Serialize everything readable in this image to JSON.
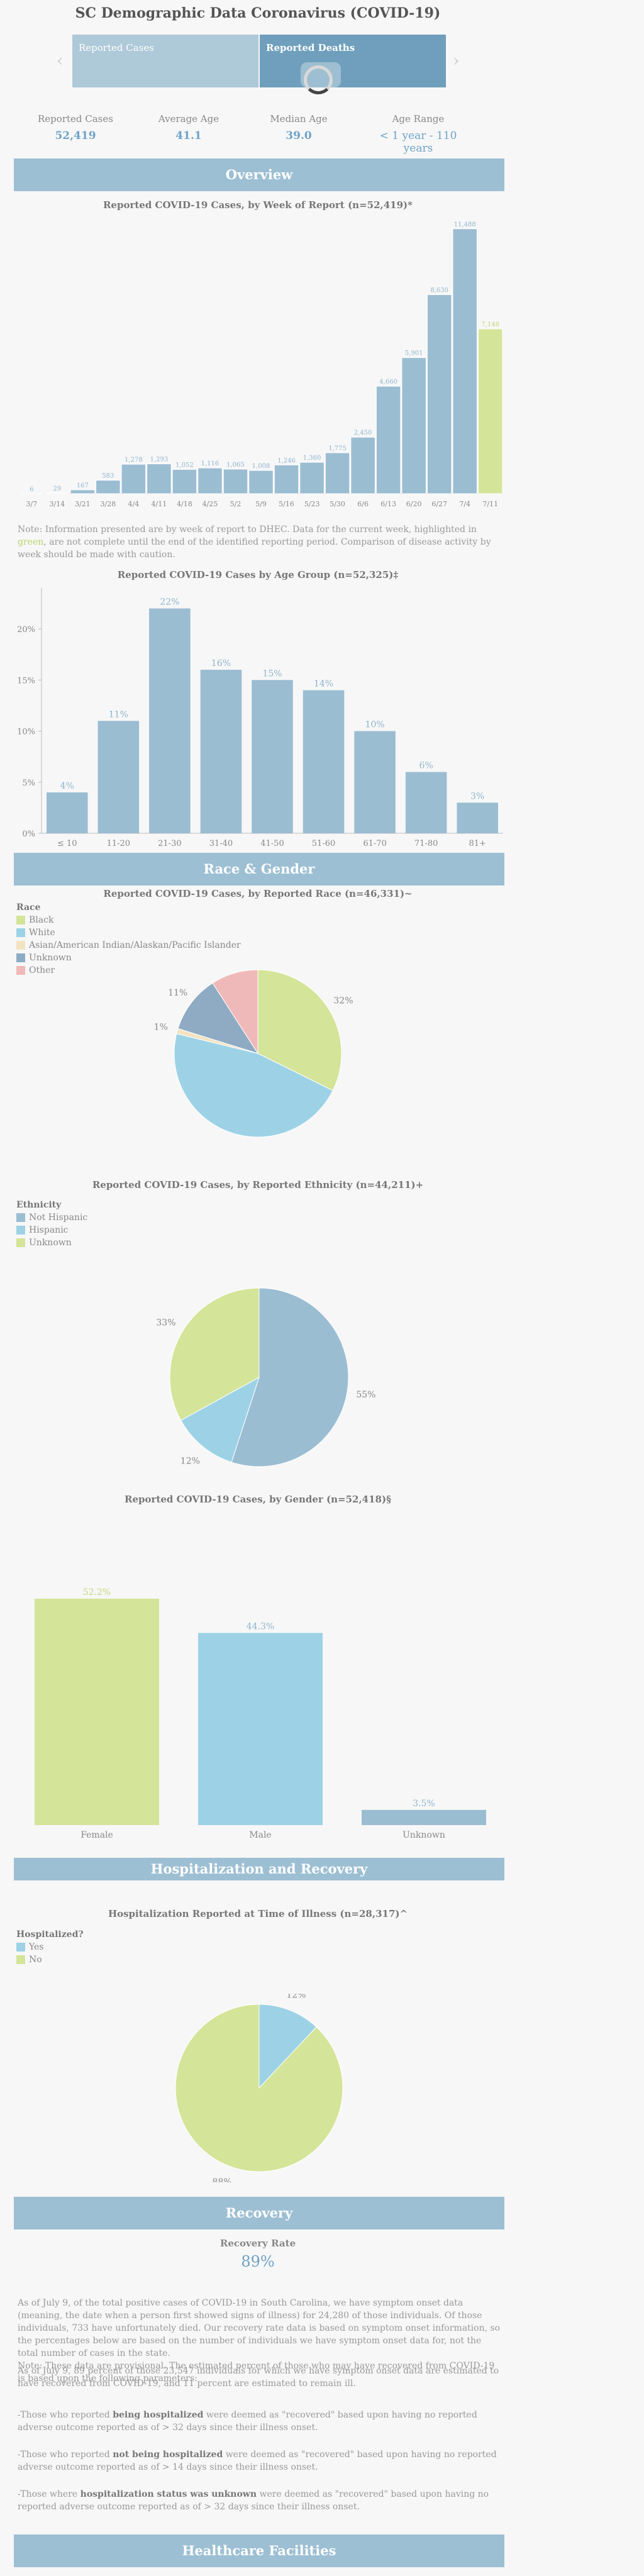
{
  "page": {
    "title": "SC Demographic Data Coronavirus (COVID-19)"
  },
  "tabs": [
    {
      "label": "Reported Cases"
    },
    {
      "label": "Reported Deaths"
    }
  ],
  "stats": [
    {
      "label": "Reported Cases",
      "value": "52,419"
    },
    {
      "label": "Average Age",
      "value": "41.1"
    },
    {
      "label": "Median Age",
      "value": "39.0"
    },
    {
      "label": "Age Range",
      "value": "< 1 year - 110 years"
    }
  ],
  "sections": {
    "overview": "Overview",
    "race_gender": "Race & Gender",
    "hospitalization": "Hospitalization and Recovery",
    "recovery": "Recovery",
    "healthcare": "Healthcare Facilities"
  },
  "colors": {
    "blue": "#9bbdd2",
    "lightblue": "#9dd2e6",
    "green": "#d4e499",
    "pink": "#f0b9b9",
    "cream": "#f3e3c2",
    "slate": "#8fabc4"
  },
  "weekly_note": {
    "before": "Note: Information presented are by week of report to DHEC. Data for the current week, highlighted in ",
    "green_word": "green",
    "after": ", are not complete until the end of the identified reporting period. Comparison of disease activity by week should be made with caution."
  },
  "chart_data": [
    {
      "id": "weekly",
      "type": "bar",
      "title": "Reported COVID-19 Cases, by Week of Report (n=52,419)*",
      "categories": [
        "3/7",
        "3/14",
        "3/21",
        "3/28",
        "4/4",
        "4/11",
        "4/18",
        "4/25",
        "5/2",
        "5/9",
        "5/16",
        "5/23",
        "5/30",
        "6/6",
        "6/13",
        "6/20",
        "6/27",
        "7/4",
        "7/11"
      ],
      "values": [
        6,
        29,
        167,
        583,
        1278,
        1293,
        1052,
        1116,
        1065,
        1008,
        1246,
        1360,
        1775,
        2450,
        4660,
        5901,
        8630,
        11488,
        7148
      ],
      "labels": [
        "6",
        "29",
        "167",
        "583",
        "1,278",
        "1,293",
        "1,052",
        "1,116",
        "1,065",
        "1,008",
        "1,246",
        "1,360",
        "1,775",
        "2,450",
        "4,660",
        "5,901",
        "8,630",
        "11,488",
        "7,148"
      ],
      "highlight_last": true,
      "ylim": [
        0,
        12000
      ]
    },
    {
      "id": "age",
      "type": "bar",
      "title": "Reported COVID-19 Cases by Age Group (n=52,325)‡",
      "categories": [
        "≤ 10",
        "11-20",
        "21-30",
        "31-40",
        "41-50",
        "51-60",
        "61-70",
        "71-80",
        "81+"
      ],
      "values": [
        4,
        11,
        22,
        16,
        15,
        14,
        10,
        6,
        3
      ],
      "labels": [
        "4%",
        "11%",
        "22%",
        "16%",
        "15%",
        "14%",
        "10%",
        "6%",
        "3%"
      ],
      "yticks": [
        "0%",
        "5%",
        "10%",
        "15%",
        "20%"
      ],
      "ylim": [
        0,
        24
      ]
    },
    {
      "id": "race",
      "type": "pie",
      "title": "Reported COVID-19 Cases, by Reported Race (n=46,331)~",
      "legend_title": "Race",
      "slices": [
        {
          "name": "Black",
          "value": 32,
          "label": "32%",
          "color": "#d4e499"
        },
        {
          "name": "White",
          "value": 46,
          "label": "46%",
          "color": "#9dd2e6"
        },
        {
          "name": "Asian/American Indian/Alaskan/Pacific Islander",
          "value": 1,
          "label": "1%",
          "color": "#f3e3c2"
        },
        {
          "name": "Unknown",
          "value": 11,
          "label": "11%",
          "color": "#8fabc4"
        },
        {
          "name": "Other",
          "value": 9,
          "label": "9%",
          "color": "#f0b9b9"
        }
      ]
    },
    {
      "id": "ethnicity",
      "type": "pie",
      "title": "Reported COVID-19 Cases, by Reported Ethnicity (n=44,211)+",
      "legend_title": "Ethnicity",
      "slices": [
        {
          "name": "Not Hispanic",
          "value": 55,
          "label": "55%",
          "color": "#9bbdd2"
        },
        {
          "name": "Hispanic",
          "value": 12,
          "label": "12%",
          "color": "#9dd2e6"
        },
        {
          "name": "Unknown",
          "value": 33,
          "label": "33%",
          "color": "#d4e499"
        }
      ]
    },
    {
      "id": "gender",
      "type": "bar",
      "title": "Reported COVID-19 Cases, by Gender (n=52,418)§",
      "categories": [
        "Female",
        "Male",
        "Unknown"
      ],
      "values": [
        52.2,
        44.3,
        3.5
      ],
      "labels": [
        "52.2%",
        "44.3%",
        "3.5%"
      ],
      "colors": [
        "#d4e499",
        "#9dd2e6",
        "#9bbdd2"
      ],
      "ylim": [
        0,
        58
      ]
    },
    {
      "id": "hospitalized",
      "type": "pie",
      "title": "Hospitalization Reported at Time of Illness (n=28,317)^",
      "legend_title": "Hospitalized?",
      "slices": [
        {
          "name": "Yes",
          "value": 12,
          "label": "12%",
          "color": "#9dd2e6"
        },
        {
          "name": "No",
          "value": 88,
          "label": "88%",
          "color": "#d4e499"
        }
      ]
    }
  ],
  "recovery": {
    "rate_label": "Recovery Rate",
    "rate_value": "89%",
    "paragraphs": [
      "As of July 9, of the total positive cases of COVID-19 in South Carolina, we have symptom onset data (meaning, the date when a person first showed signs of illness) for 24,280 of those individuals. Of those individuals, 733 have unfortunately died. Our recovery rate data is based on symptom onset information, so the percentages below are based on the number of individuals we have symptom onset data for, not the total number of cases in the state.\nNote: These data are provisional. The estimated percent of those who may have recovered from COVID-19 is based upon the following parameters:",
      "As of July 9, 89 percent of those 23,547 individuals for which we have symptom onset data are estimated to have recovered from COVID-19, and 11 percent are estimated to remain ill."
    ],
    "bullets": [
      {
        "pre": "-Those who reported ",
        "bold": "being hospitalized",
        "post": " were deemed as \"recovered\" based upon having no reported adverse outcome reported as of > 32 days since their illness onset."
      },
      {
        "pre": "-Those who reported ",
        "bold": "not being hospitalized",
        "post": " were deemed as \"recovered\" based upon having no reported adverse outcome reported as of > 14 days since their illness onset."
      },
      {
        "pre": "-Those where ",
        "bold": "hospitalization status was unknown",
        "post": " were deemed as \"recovered\" based upon having no reported adverse outcome reported as of > 32 days since their illness onset."
      }
    ]
  }
}
